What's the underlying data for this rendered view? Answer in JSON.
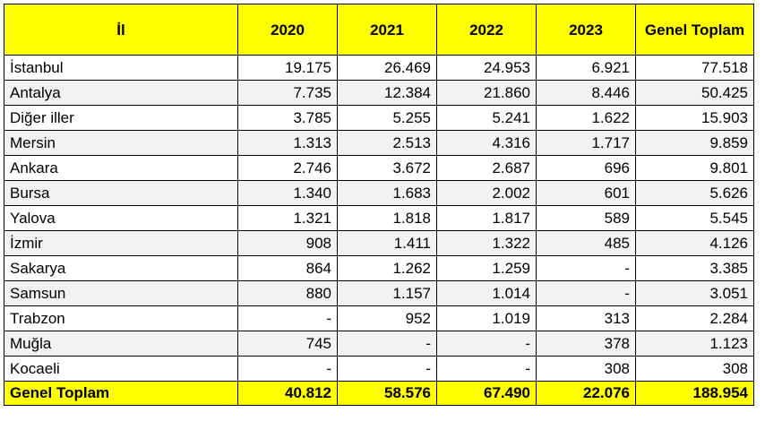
{
  "table": {
    "headers": [
      "İl",
      "2020",
      "2021",
      "2022",
      "2023",
      "Genel Toplam"
    ],
    "rows": [
      [
        "İstanbul",
        "19.175",
        "26.469",
        "24.953",
        "6.921",
        "77.518"
      ],
      [
        "Antalya",
        "7.735",
        "12.384",
        "21.860",
        "8.446",
        "50.425"
      ],
      [
        "Diğer iller",
        "3.785",
        "5.255",
        "5.241",
        "1.622",
        "15.903"
      ],
      [
        "Mersin",
        "1.313",
        "2.513",
        "4.316",
        "1.717",
        "9.859"
      ],
      [
        "Ankara",
        "2.746",
        "3.672",
        "2.687",
        "696",
        "9.801"
      ],
      [
        "Bursa",
        "1.340",
        "1.683",
        "2.002",
        "601",
        "5.626"
      ],
      [
        "Yalova",
        "1.321",
        "1.818",
        "1.817",
        "589",
        "5.545"
      ],
      [
        "İzmir",
        "908",
        "1.411",
        "1.322",
        "485",
        "4.126"
      ],
      [
        "Sakarya",
        "864",
        "1.262",
        "1.259",
        "-",
        "3.385"
      ],
      [
        "Samsun",
        "880",
        "1.157",
        "1.014",
        "-",
        "3.051"
      ],
      [
        "Trabzon",
        "-",
        "952",
        "1.019",
        "313",
        "2.284"
      ],
      [
        "Muğla",
        "745",
        "-",
        "-",
        "378",
        "1.123"
      ],
      [
        "Kocaeli",
        "-",
        "-",
        "-",
        "308",
        "308"
      ]
    ],
    "total": [
      "Genel Toplam",
      "40.812",
      "58.576",
      "67.490",
      "22.076",
      "188.954"
    ]
  },
  "colors": {
    "header_bg": "#ffff00",
    "stripe_bg": "#f2f2f2",
    "border": "#000000"
  }
}
